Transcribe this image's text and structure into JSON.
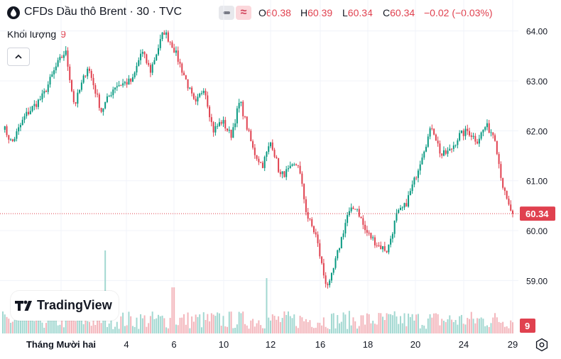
{
  "header": {
    "title": "CFDs Dầu thô Brent · 30 · TVC",
    "wave_symbol": "≈",
    "open_label": "O",
    "open_value": "60.38",
    "high_label": "H",
    "high_value": "60.39",
    "low_label": "L",
    "low_value": "60.34",
    "close_label": "C",
    "close_value": "60.34",
    "change": "−0.02 (−0.03%)"
  },
  "volume_legend": {
    "label": "Khối lượng",
    "value": "9"
  },
  "branding": {
    "name": "TradingView"
  },
  "colors": {
    "up": "#089981",
    "down": "#e0414f",
    "vol_up": "#a2d8d1",
    "vol_down": "#f3b5bb",
    "grid": "#f0f3fa",
    "axis_text": "#131722"
  },
  "chart_data": {
    "type": "candlestick",
    "symbol": "CFDs Dầu thô Brent",
    "interval": "30",
    "source": "TVC",
    "ylim": [
      58.75,
      64.35
    ],
    "y_ticks": [
      59.0,
      60.0,
      61.0,
      62.0,
      63.0,
      64.0
    ],
    "y_tick_labels": [
      "59.00",
      "60.00",
      "61.00",
      "62.00",
      "63.00",
      "64.00"
    ],
    "x_tick_labels": [
      "Tháng Mười hai",
      "4",
      "6",
      "10",
      "12",
      "16",
      "18",
      "20",
      "24",
      "29"
    ],
    "last_price": 60.34,
    "last_price_label": "60.34",
    "last_volume_label": "9",
    "close_path": [
      {
        "t": 0,
        "p": 62.1
      },
      {
        "t": 2,
        "p": 61.75
      },
      {
        "t": 5,
        "p": 62.3
      },
      {
        "t": 9,
        "p": 62.7
      },
      {
        "t": 12,
        "p": 63.3
      },
      {
        "t": 14,
        "p": 63.6
      },
      {
        "t": 16,
        "p": 62.5
      },
      {
        "t": 19,
        "p": 63.3
      },
      {
        "t": 22,
        "p": 62.4
      },
      {
        "t": 25,
        "p": 62.9
      },
      {
        "t": 29,
        "p": 63.0
      },
      {
        "t": 31,
        "p": 63.6
      },
      {
        "t": 33,
        "p": 63.2
      },
      {
        "t": 36,
        "p": 64.0
      },
      {
        "t": 38,
        "p": 63.7
      },
      {
        "t": 41,
        "p": 63.0
      },
      {
        "t": 43,
        "p": 62.5
      },
      {
        "t": 45,
        "p": 62.9
      },
      {
        "t": 47,
        "p": 62.0
      },
      {
        "t": 49,
        "p": 62.2
      },
      {
        "t": 51,
        "p": 61.9
      },
      {
        "t": 53,
        "p": 62.6
      },
      {
        "t": 56,
        "p": 61.6
      },
      {
        "t": 58,
        "p": 61.3
      },
      {
        "t": 60,
        "p": 61.8
      },
      {
        "t": 62,
        "p": 61.1
      },
      {
        "t": 64,
        "p": 61.2
      },
      {
        "t": 66,
        "p": 61.35
      },
      {
        "t": 68,
        "p": 60.3
      },
      {
        "t": 70,
        "p": 59.9
      },
      {
        "t": 72,
        "p": 59.0
      },
      {
        "t": 73,
        "p": 58.9
      },
      {
        "t": 75,
        "p": 59.6
      },
      {
        "t": 77,
        "p": 60.3
      },
      {
        "t": 79,
        "p": 60.5
      },
      {
        "t": 81,
        "p": 60.0
      },
      {
        "t": 84,
        "p": 59.7
      },
      {
        "t": 86,
        "p": 59.6
      },
      {
        "t": 88,
        "p": 60.3
      },
      {
        "t": 90,
        "p": 60.5
      },
      {
        "t": 92,
        "p": 61.0
      },
      {
        "t": 94,
        "p": 61.6
      },
      {
        "t": 96,
        "p": 62.1
      },
      {
        "t": 98,
        "p": 61.5
      },
      {
        "t": 100,
        "p": 61.6
      },
      {
        "t": 102,
        "p": 61.9
      },
      {
        "t": 104,
        "p": 62.0
      },
      {
        "t": 106,
        "p": 61.8
      },
      {
        "t": 108,
        "p": 62.1
      },
      {
        "t": 110,
        "p": 61.9
      },
      {
        "t": 111,
        "p": 61.3
      },
      {
        "t": 112,
        "p": 60.8
      },
      {
        "t": 113,
        "p": 60.5
      },
      {
        "t": 114,
        "p": 60.34
      }
    ],
    "volume_spikes": [
      {
        "t": 23,
        "v": 9
      },
      {
        "t": 38,
        "v": 5
      },
      {
        "t": 59,
        "v": 6
      }
    ]
  }
}
